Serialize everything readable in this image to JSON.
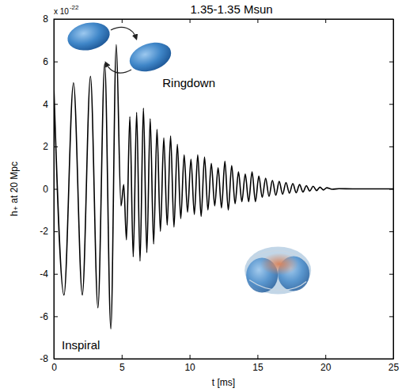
{
  "chart_data": {
    "type": "line",
    "title": "1.35-1.35 Msun",
    "x_label": "t [ms]",
    "y_label": "h₊ at 20 Mpc",
    "y_multiplier": {
      "base": "x 10",
      "exponent": "-22"
    },
    "annotations": [
      {
        "text": "Ringdown"
      },
      {
        "text": "Inspiral"
      }
    ],
    "color": "#000000",
    "grid": false,
    "xlim": [
      0,
      25
    ],
    "ylim": [
      -8,
      8
    ],
    "xticks": [
      0,
      5,
      10,
      15,
      20,
      25
    ],
    "yticks": [
      -8,
      -6,
      -4,
      -2,
      0,
      2,
      4,
      6,
      8
    ],
    "x": [
      0,
      0.75,
      1.45,
      2.1,
      2.7,
      3.25,
      3.75,
      4.2,
      4.6,
      4.95,
      5.15,
      5.35,
      5.6,
      5.85,
      6.1,
      6.35,
      6.6,
      6.85,
      7.1,
      7.35,
      7.6,
      7.85,
      8.1,
      8.35,
      8.6,
      8.85,
      9.1,
      9.35,
      9.6,
      9.85,
      10.1,
      10.35,
      10.6,
      10.85,
      11.1,
      11.35,
      11.6,
      11.85,
      12.1,
      12.35,
      12.6,
      12.85,
      13.1,
      13.35,
      13.6,
      13.85,
      14.1,
      14.35,
      14.6,
      14.85,
      15.1,
      15.35,
      15.6,
      15.85,
      16.1,
      16.35,
      16.6,
      16.85,
      17.1,
      17.35,
      17.6,
      17.85,
      18.1,
      18.35,
      18.6,
      18.85,
      19.1,
      19.35,
      19.6,
      19.85,
      20.1,
      20.5,
      21,
      22,
      25
    ],
    "values": [
      4.9,
      -5.0,
      5.0,
      -5.0,
      5.3,
      -5.6,
      5.9,
      -6.6,
      6.8,
      -0.8,
      0.2,
      -2.4,
      3.4,
      -3.2,
      3.6,
      -3.4,
      3.8,
      -3.0,
      3.3,
      -2.6,
      2.8,
      -2.0,
      2.4,
      -1.7,
      2.5,
      -1.8,
      2.1,
      -1.4,
      1.6,
      -1.1,
      1.4,
      -1.2,
      1.6,
      -1.3,
      1.5,
      -1.0,
      1.2,
      -0.8,
      1.0,
      -0.9,
      1.3,
      -1.0,
      1.1,
      -0.7,
      0.8,
      -0.6,
      0.7,
      -0.6,
      0.8,
      -0.6,
      0.6,
      -0.4,
      0.5,
      -0.35,
      0.4,
      -0.3,
      0.35,
      -0.25,
      0.3,
      -0.2,
      0.25,
      -0.18,
      0.2,
      -0.15,
      0.15,
      -0.1,
      0.12,
      -0.08,
      0.08,
      -0.05,
      0.05,
      -0.02,
      0.01,
      0,
      0
    ]
  }
}
